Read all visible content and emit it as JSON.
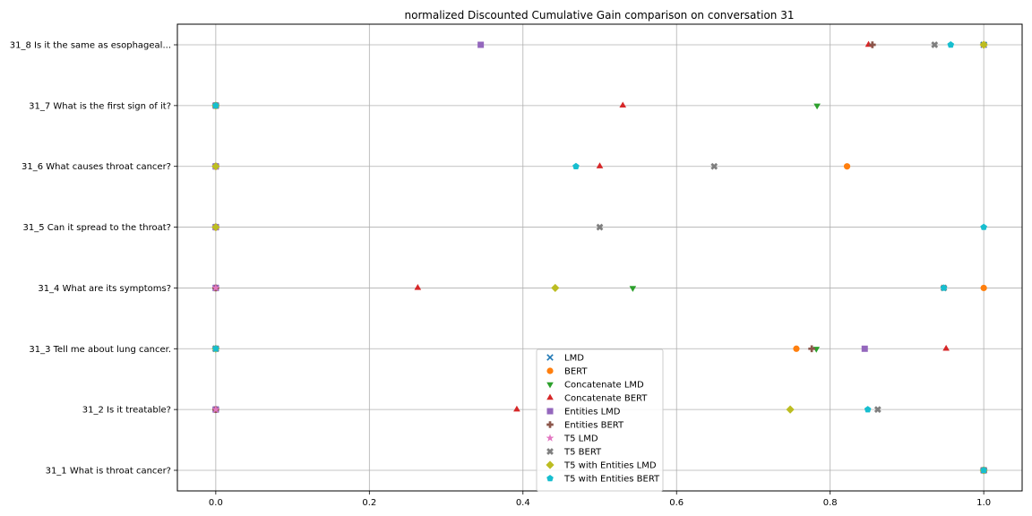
{
  "chart_data": {
    "type": "scatter",
    "title": "normalized Discounted Cumulative Gain comparison on conversation 31",
    "xlabel": "",
    "ylabel": "",
    "xlim": [
      -0.05,
      1.05
    ],
    "xticks": [
      0.0,
      0.2,
      0.4,
      0.6,
      0.8,
      1.0
    ],
    "xtick_labels": [
      "0.0",
      "0.2",
      "0.4",
      "0.6",
      "0.8",
      "1.0"
    ],
    "categories": [
      "31_1 What is throat cancer?",
      "31_2 Is it treatable?",
      "31_3 Tell me about lung cancer.",
      "31_4 What are its symptoms?",
      "31_5 Can it spread to the throat?",
      "31_6 What causes throat cancer?",
      "31_7 What is the first sign of it?",
      "31_8 Is it the same as esophageal..."
    ],
    "grid": true,
    "legend_position": "lower-center",
    "series": [
      {
        "name": "LMD",
        "marker": "x",
        "color": "#1f77b4",
        "values": [
          1.0,
          0.0,
          0.0,
          0.0,
          0.0,
          0.0,
          0.0,
          1.0
        ]
      },
      {
        "name": "BERT",
        "marker": "o",
        "color": "#ff7f0e",
        "values": [
          1.0,
          0.0,
          0.756,
          1.0,
          0.0,
          0.822,
          0.0,
          1.0
        ]
      },
      {
        "name": "Concatenate LMD",
        "marker": "v",
        "color": "#2ca02c",
        "values": [
          1.0,
          0.0,
          0.782,
          0.543,
          0.0,
          0.0,
          0.783,
          1.0
        ]
      },
      {
        "name": "Concatenate BERT",
        "marker": "^",
        "color": "#d62728",
        "values": [
          1.0,
          0.392,
          0.951,
          0.263,
          0.0,
          0.5,
          0.53,
          0.85
        ]
      },
      {
        "name": "Entities LMD",
        "marker": "s",
        "color": "#9467bd",
        "values": [
          1.0,
          0.0,
          0.845,
          0.0,
          0.0,
          0.0,
          0.0,
          0.345
        ]
      },
      {
        "name": "Entities BERT",
        "marker": "P",
        "color": "#8c564b",
        "values": [
          1.0,
          0.0,
          0.776,
          0.0,
          0.0,
          0.0,
          0.0,
          0.855
        ]
      },
      {
        "name": "T5 LMD",
        "marker": "*",
        "color": "#e377c2",
        "values": [
          1.0,
          0.0,
          0.0,
          0.0,
          0.0,
          0.0,
          0.0,
          1.0
        ]
      },
      {
        "name": "T5 BERT",
        "marker": "X",
        "color": "#7f7f7f",
        "values": [
          1.0,
          0.862,
          0.0,
          0.948,
          0.5,
          0.649,
          0.0,
          0.936
        ]
      },
      {
        "name": "T5 with Entities LMD",
        "marker": "D",
        "color": "#bcbd22",
        "values": [
          1.0,
          0.748,
          0.0,
          0.442,
          0.0,
          0.0,
          0.0,
          1.0
        ]
      },
      {
        "name": "T5 with Entities BERT",
        "marker": "p",
        "color": "#17becf",
        "values": [
          1.0,
          0.849,
          0.0,
          0.948,
          1.0,
          0.469,
          0.0,
          0.957
        ]
      }
    ]
  }
}
